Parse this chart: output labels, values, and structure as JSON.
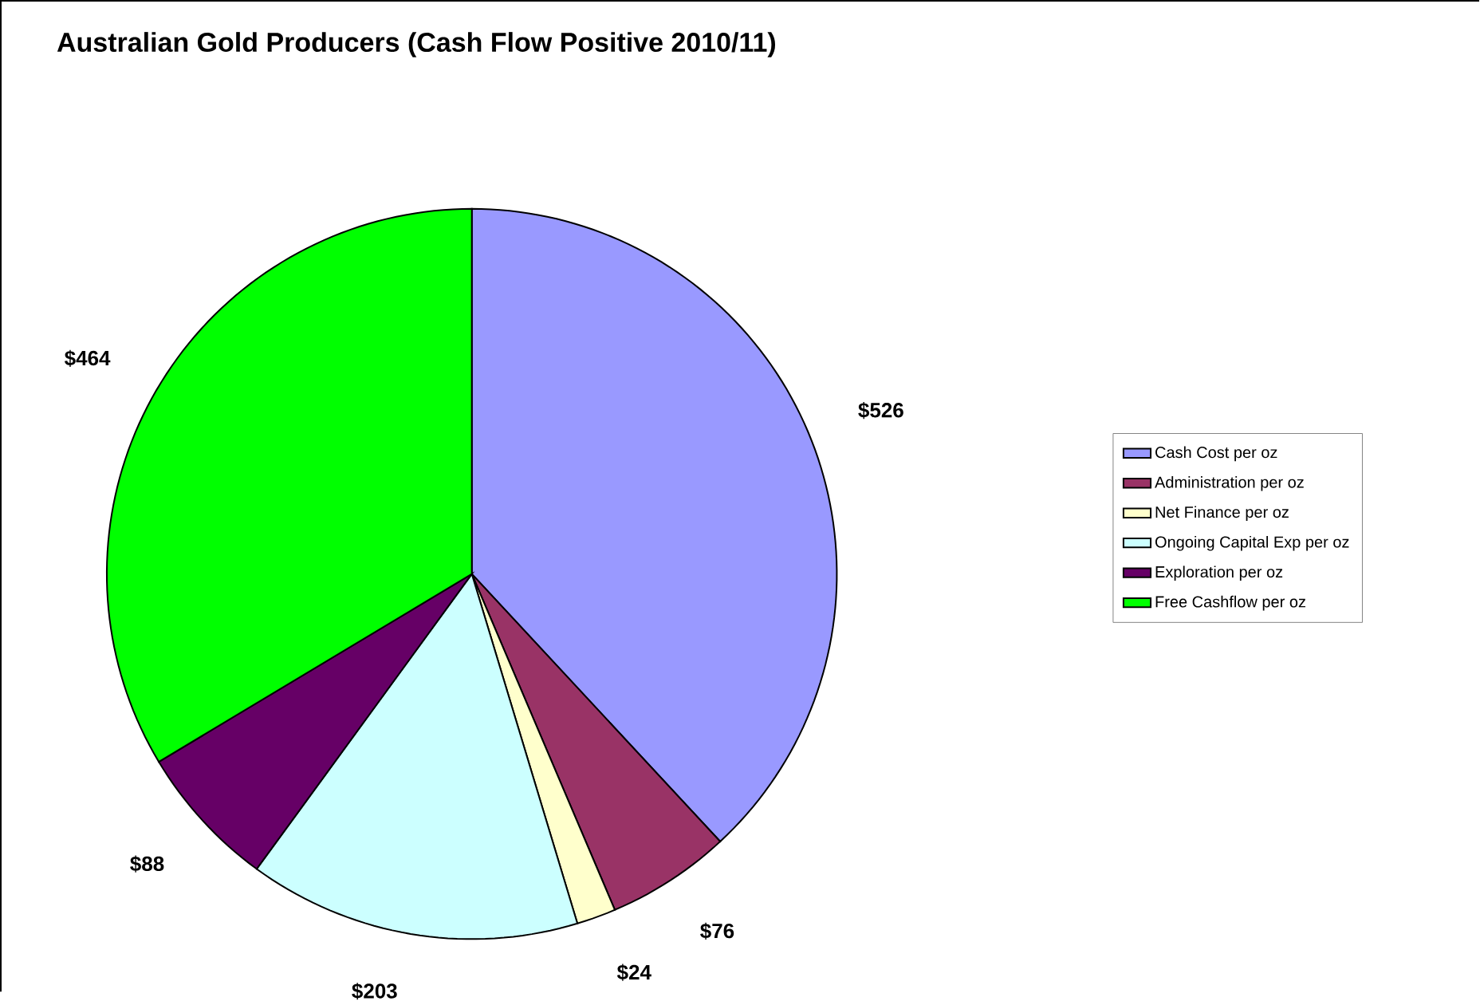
{
  "chart_data": {
    "type": "pie",
    "title": "Australian Gold Producers (Cash Flow Positive 2010/11)",
    "categories": [
      "Cash Cost per oz",
      "Administration per oz",
      "Net Finance per oz",
      "Ongoing Capital Exp per oz",
      "Exploration per oz",
      "Free Cashflow per oz"
    ],
    "values": [
      526,
      76,
      24,
      203,
      88,
      464
    ],
    "value_labels": [
      "$526",
      "$76",
      "$24",
      "$203",
      "$88",
      "$464"
    ],
    "colors": [
      "#9999ff",
      "#993366",
      "#ffffcc",
      "#ccffff",
      "#660066",
      "#00ff00"
    ],
    "legend": "right"
  }
}
